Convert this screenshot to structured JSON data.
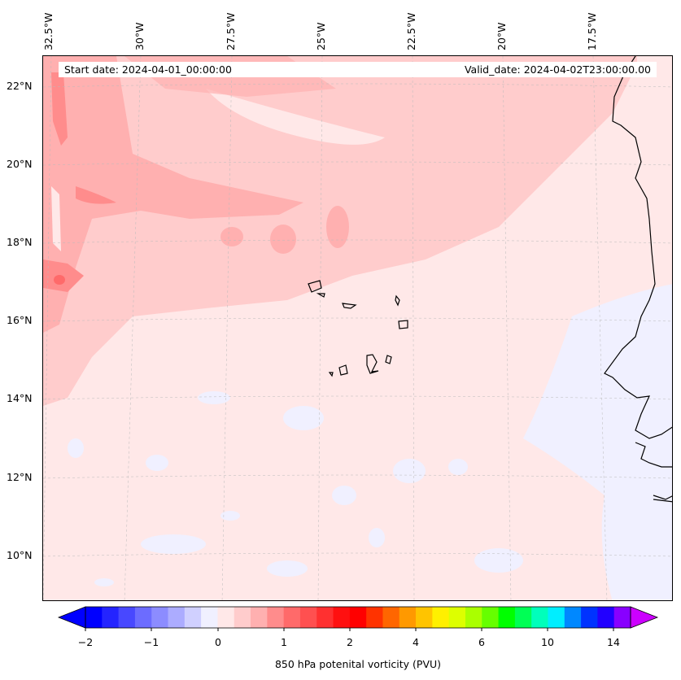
{
  "map": {
    "start_date": "Start date: 2024-04-01_00:00:00",
    "valid_date": "Valid_date: 2024-04-02T23:00:00.00",
    "lon_labels": [
      "32.5°W",
      "30°W",
      "27.5°W",
      "25°W",
      "22.5°W",
      "20°W",
      "17.5°W"
    ],
    "lat_labels": [
      "22°N",
      "20°N",
      "18°N",
      "16°N",
      "14°N",
      "12°N",
      "10°N"
    ]
  },
  "colorbar": {
    "label": "850 hPa potenital vorticity (PVU)",
    "ticks": [
      "−2",
      "−1",
      "0",
      "1",
      "2",
      "4",
      "6",
      "10",
      "14"
    ],
    "under_color": "#0000ff",
    "over_color": "#cc00ff",
    "colors": [
      "#0000ff",
      "#2424ff",
      "#4848ff",
      "#6c6cff",
      "#8c8cff",
      "#acacff",
      "#d0d0ff",
      "#f0f0ff",
      "#ffe8e8",
      "#ffcccc",
      "#ffb0b0",
      "#ff8c8c",
      "#ff6a6a",
      "#ff5050",
      "#ff3030",
      "#ff1010",
      "#ff0000",
      "#ff3300",
      "#ff6600",
      "#ff9900",
      "#ffc400",
      "#fff000",
      "#ddff00",
      "#aaff00",
      "#66ff00",
      "#00ff00",
      "#00ff55",
      "#00ffbb",
      "#00eeff",
      "#0088ff",
      "#0033ff",
      "#2200ff",
      "#8800ff"
    ]
  }
}
